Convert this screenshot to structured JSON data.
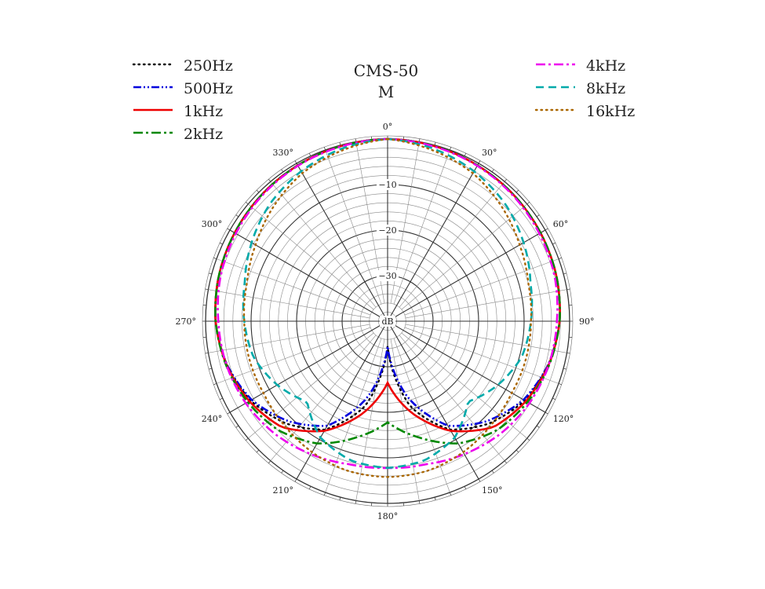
{
  "chart_data": {
    "type": "polar-line",
    "title": "CMS-50",
    "subtitle": "M",
    "unit_label": "dB",
    "r_range_db": [
      -40,
      0
    ],
    "r_ticks": [
      {
        "value": -10,
        "label": "−10"
      },
      {
        "value": -20,
        "label": "−20"
      },
      {
        "value": -30,
        "label": "−30"
      }
    ],
    "angle_labels": [
      {
        "angle": 0,
        "label": "0°"
      },
      {
        "angle": 30,
        "label": "30°"
      },
      {
        "angle": 60,
        "label": "60°"
      },
      {
        "angle": 90,
        "label": "90°"
      },
      {
        "angle": 120,
        "label": "120°"
      },
      {
        "angle": 150,
        "label": "150°"
      },
      {
        "angle": 180,
        "label": "180°"
      },
      {
        "angle": 210,
        "label": "210°"
      },
      {
        "angle": 240,
        "label": "240°"
      },
      {
        "angle": 270,
        "label": "270°"
      },
      {
        "angle": 300,
        "label": "300°"
      },
      {
        "angle": 330,
        "label": "330°"
      }
    ],
    "grid": true,
    "angles": [
      0,
      15,
      30,
      45,
      60,
      75,
      90,
      105,
      120,
      135,
      150,
      165,
      180
    ],
    "series": [
      {
        "name": "250Hz",
        "color": "#000000",
        "style": "dotted",
        "legend": "left",
        "values": [
          0,
          -0.2,
          -0.5,
          -0.8,
          -1.2,
          -1.6,
          -2.2,
          -3.4,
          -5.2,
          -8.3,
          -12.5,
          -20.6,
          -34.5
        ]
      },
      {
        "name": "500Hz",
        "color": "#0000dd",
        "style": "dashdotdot",
        "legend": "left",
        "values": [
          0,
          -0.2,
          -0.5,
          -0.8,
          -1.2,
          -1.6,
          -2.2,
          -3.4,
          -5.5,
          -9.0,
          -13.5,
          -22.6,
          -34.5
        ]
      },
      {
        "name": "1kHz",
        "color": "#ee0000",
        "style": "solid",
        "legend": "left",
        "values": [
          0,
          -0.2,
          -0.5,
          -0.8,
          -1.2,
          -1.6,
          -2.2,
          -3.3,
          -4.9,
          -7.1,
          -12.2,
          -19.1,
          -26.5
        ]
      },
      {
        "name": "2kHz",
        "color": "#008800",
        "style": "dashdot",
        "legend": "left",
        "values": [
          0,
          -0.2,
          -0.5,
          -0.8,
          -1.2,
          -1.6,
          -2.2,
          -3.2,
          -4.5,
          -6.1,
          -9.0,
          -13.6,
          -17.8
        ]
      },
      {
        "name": "4kHz",
        "color": "#ee00ee",
        "style": "dashdot",
        "legend": "right",
        "values": [
          0,
          -0.3,
          -0.6,
          -1.0,
          -1.5,
          -2.0,
          -2.8,
          -3.3,
          -4.0,
          -5.0,
          -6.3,
          -7.5,
          -7.8
        ]
      },
      {
        "name": "8kHz",
        "color": "#00aaaa",
        "style": "dashed",
        "legend": "right",
        "values": [
          0,
          -0.8,
          -2.0,
          -3.5,
          -5.5,
          -7.5,
          -8.5,
          -9.5,
          -12.0,
          -15.0,
          -10.5,
          -8.4,
          -7.8
        ]
      },
      {
        "name": "16kHz",
        "color": "#aa6600",
        "style": "dotted",
        "legend": "right",
        "values": [
          0,
          -1.2,
          -2.5,
          -4.5,
          -6.5,
          -8.0,
          -8.5,
          -8.5,
          -8.5,
          -7.8,
          -6.8,
          -6.0,
          -5.8
        ]
      }
    ]
  }
}
